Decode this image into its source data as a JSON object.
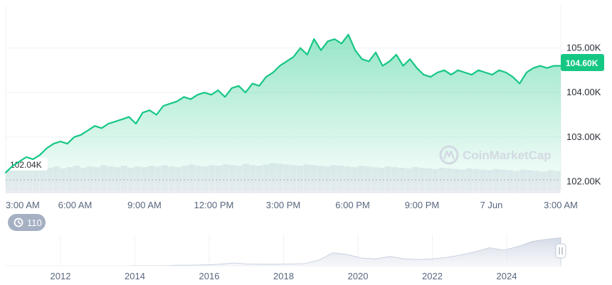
{
  "colors": {
    "line": "#16c784",
    "price_tag_bg": "#16c784",
    "area_top": "#16c784",
    "volume": "#e9ecf1",
    "history_badge_bg": "#a6b0c3",
    "grid": "#eff2f5"
  },
  "watermark": {
    "text": "CoinMarketCap",
    "icon": "coinmarketcap-logo-icon"
  },
  "history_badge": {
    "icon": "history-clock-icon",
    "value": "110"
  },
  "navigator": {
    "ticks": [
      "2012",
      "2014",
      "2016",
      "2018",
      "2020",
      "2022",
      "2024"
    ],
    "handle_icon": "drag-handle-icon"
  },
  "chart_data": {
    "type": "area",
    "title": "",
    "xlabel": "",
    "ylabel": "",
    "x_ticks": [
      "3:00 AM",
      "6:00 AM",
      "9:00 AM",
      "12:00 PM",
      "3:00 PM",
      "6:00 PM",
      "9:00 PM",
      "7 Jun",
      "3:00 AM"
    ],
    "y_ticks": [
      "102.00K",
      "103.00K",
      "104.00K",
      "105.00K"
    ],
    "ylim": [
      101.8,
      105.95
    ],
    "grid": true,
    "current_price_label": "104.60K",
    "open_reference_label": "102.04K",
    "series": [
      {
        "values": [
          102.2,
          102.35,
          102.45,
          102.55,
          102.5,
          102.6,
          102.75,
          102.85,
          102.9,
          102.85,
          103.0,
          103.05,
          103.15,
          103.25,
          103.2,
          103.3,
          103.35,
          103.4,
          103.45,
          103.3,
          103.55,
          103.6,
          103.5,
          103.7,
          103.75,
          103.8,
          103.9,
          103.85,
          103.95,
          104.0,
          103.95,
          104.05,
          103.9,
          104.1,
          104.15,
          104.0,
          104.2,
          104.15,
          104.35,
          104.45,
          104.6,
          104.7,
          104.8,
          105.0,
          104.85,
          105.2,
          104.95,
          105.15,
          105.2,
          105.1,
          105.3,
          104.95,
          104.75,
          104.7,
          104.9,
          104.6,
          104.7,
          104.85,
          104.6,
          104.75,
          104.55,
          104.4,
          104.35,
          104.45,
          104.5,
          104.4,
          104.5,
          104.45,
          104.4,
          104.5,
          104.45,
          104.4,
          104.5,
          104.45,
          104.35,
          104.2,
          104.45,
          104.55,
          104.6,
          104.55,
          104.6,
          104.6
        ]
      }
    ],
    "volume_series": [
      0.38,
      0.39,
      0.37,
      0.4,
      0.38,
      0.41,
      0.4,
      0.42,
      0.39,
      0.41,
      0.43,
      0.4,
      0.42,
      0.41,
      0.44,
      0.42,
      0.41,
      0.43,
      0.4,
      0.42,
      0.41,
      0.43,
      0.42,
      0.44,
      0.42,
      0.41,
      0.43,
      0.45,
      0.43,
      0.42,
      0.44,
      0.43,
      0.45,
      0.44,
      0.43,
      0.46,
      0.44,
      0.43,
      0.45,
      0.47,
      0.46,
      0.45,
      0.44,
      0.43,
      0.45,
      0.44,
      0.43,
      0.42,
      0.44,
      0.43,
      0.42,
      0.41,
      0.43,
      0.42,
      0.41,
      0.4,
      0.42,
      0.41,
      0.4,
      0.39,
      0.41,
      0.4,
      0.39,
      0.38,
      0.4,
      0.39,
      0.38,
      0.37,
      0.39,
      0.38,
      0.37,
      0.36,
      0.38,
      0.37,
      0.36,
      0.35,
      0.37,
      0.36,
      0.35,
      0.34,
      0.36,
      0.35
    ],
    "navigator_series": [
      0.0,
      0.0,
      0.0,
      0.0,
      0.0,
      0.0,
      0.0,
      0.0,
      0.0,
      0.01,
      0.01,
      0.01,
      0.02,
      0.02,
      0.03,
      0.05,
      0.09,
      0.06,
      0.05,
      0.05,
      0.06,
      0.07,
      0.18,
      0.42,
      0.36,
      0.25,
      0.22,
      0.3,
      0.22,
      0.2,
      0.22,
      0.27,
      0.35,
      0.45,
      0.58,
      0.5,
      0.62,
      0.78,
      0.85,
      0.9
    ]
  }
}
